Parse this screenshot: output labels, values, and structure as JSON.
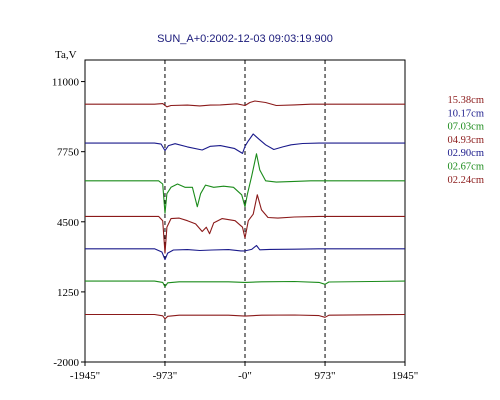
{
  "chart_data": {
    "type": "line",
    "title": "SUN_A+0:2002-12-03 09:03:19.900",
    "ylabel": "Ta,V",
    "xlim": [
      -1945,
      1945
    ],
    "ylim": [
      -2000,
      12000
    ],
    "x_tick_values": [
      -1945,
      -973,
      0,
      973,
      1945
    ],
    "x_tick_labels": [
      "-1945\"",
      "-973\"",
      "-0\"",
      "973\"",
      "1945\""
    ],
    "y_tick_values": [
      11000,
      7750,
      4500,
      1250,
      -2000
    ],
    "y_tick_labels": [
      "11000",
      "7750",
      "4500",
      "1250",
      "-2000"
    ],
    "dashed_vlines": [
      -973,
      0,
      973
    ],
    "grid": false,
    "legend_position": "right",
    "series": [
      {
        "name": "15.38cm",
        "color": "#8b1a1a",
        "baseline": 9950,
        "points": [
          [
            -1945,
            0
          ],
          [
            -1100,
            0
          ],
          [
            -1000,
            30
          ],
          [
            -950,
            -120
          ],
          [
            -900,
            -60
          ],
          [
            -700,
            -40
          ],
          [
            -550,
            -80
          ],
          [
            -420,
            -40
          ],
          [
            -300,
            -30
          ],
          [
            -100,
            20
          ],
          [
            0,
            -60
          ],
          [
            60,
            80
          ],
          [
            120,
            150
          ],
          [
            250,
            80
          ],
          [
            380,
            -60
          ],
          [
            600,
            -30
          ],
          [
            800,
            0
          ],
          [
            1945,
            0
          ]
        ]
      },
      {
        "name": "10.17cm",
        "color": "#1a1a8b",
        "baseline": 8150,
        "points": [
          [
            -1945,
            0
          ],
          [
            -1100,
            0
          ],
          [
            -1020,
            -50
          ],
          [
            -973,
            -350
          ],
          [
            -930,
            -120
          ],
          [
            -850,
            -30
          ],
          [
            -700,
            -180
          ],
          [
            -520,
            -320
          ],
          [
            -420,
            -150
          ],
          [
            -300,
            -120
          ],
          [
            -130,
            -250
          ],
          [
            -30,
            -480
          ],
          [
            0,
            -150
          ],
          [
            40,
            100
          ],
          [
            100,
            420
          ],
          [
            170,
            180
          ],
          [
            250,
            -80
          ],
          [
            350,
            -300
          ],
          [
            460,
            -180
          ],
          [
            560,
            -80
          ],
          [
            700,
            -20
          ],
          [
            900,
            0
          ],
          [
            1945,
            0
          ]
        ]
      },
      {
        "name": "07.03cm",
        "color": "#1a8b1a",
        "baseline": 6400,
        "points": [
          [
            -1945,
            0
          ],
          [
            -1050,
            0
          ],
          [
            -1000,
            -150
          ],
          [
            -973,
            -1500
          ],
          [
            -950,
            -600
          ],
          [
            -900,
            -300
          ],
          [
            -820,
            -150
          ],
          [
            -730,
            -300
          ],
          [
            -640,
            -300
          ],
          [
            -580,
            -1200
          ],
          [
            -540,
            -600
          ],
          [
            -480,
            -200
          ],
          [
            -380,
            -300
          ],
          [
            -260,
            -250
          ],
          [
            -140,
            -300
          ],
          [
            -40,
            -650
          ],
          [
            0,
            -1200
          ],
          [
            30,
            -600
          ],
          [
            80,
            200
          ],
          [
            140,
            1250
          ],
          [
            180,
            500
          ],
          [
            250,
            0
          ],
          [
            380,
            -60
          ],
          [
            600,
            -30
          ],
          [
            800,
            0
          ],
          [
            1945,
            0
          ]
        ]
      },
      {
        "name": "04.93cm",
        "color": "#8b1a1a",
        "baseline": 4750,
        "points": [
          [
            -1945,
            0
          ],
          [
            -1050,
            0
          ],
          [
            -1000,
            -200
          ],
          [
            -973,
            -1700
          ],
          [
            -950,
            -500
          ],
          [
            -900,
            -100
          ],
          [
            -800,
            -80
          ],
          [
            -700,
            -200
          ],
          [
            -600,
            -350
          ],
          [
            -520,
            -700
          ],
          [
            -470,
            -500
          ],
          [
            -430,
            -800
          ],
          [
            -380,
            -300
          ],
          [
            -280,
            -100
          ],
          [
            -120,
            -200
          ],
          [
            -30,
            -500
          ],
          [
            0,
            -1000
          ],
          [
            40,
            -200
          ],
          [
            100,
            100
          ],
          [
            150,
            1000
          ],
          [
            200,
            300
          ],
          [
            280,
            -50
          ],
          [
            400,
            -80
          ],
          [
            600,
            -30
          ],
          [
            900,
            0
          ],
          [
            1945,
            0
          ]
        ]
      },
      {
        "name": "02.90cm",
        "color": "#1a1a8b",
        "baseline": 3250,
        "points": [
          [
            -1945,
            0
          ],
          [
            -1100,
            0
          ],
          [
            -1010,
            -150
          ],
          [
            -973,
            -500
          ],
          [
            -940,
            -200
          ],
          [
            -870,
            -60
          ],
          [
            -700,
            -40
          ],
          [
            -550,
            -80
          ],
          [
            -400,
            -60
          ],
          [
            -200,
            -40
          ],
          [
            -50,
            -100
          ],
          [
            0,
            -100
          ],
          [
            80,
            -30
          ],
          [
            140,
            150
          ],
          [
            180,
            -50
          ],
          [
            300,
            -30
          ],
          [
            600,
            -20
          ],
          [
            900,
            0
          ],
          [
            1945,
            0
          ]
        ]
      },
      {
        "name": "02.67cm",
        "color": "#1a8b1a",
        "baseline": 1750,
        "points": [
          [
            -1945,
            0
          ],
          [
            -1100,
            0
          ],
          [
            -1000,
            -60
          ],
          [
            -973,
            -260
          ],
          [
            -940,
            -80
          ],
          [
            -800,
            -30
          ],
          [
            -500,
            -30
          ],
          [
            -200,
            -30
          ],
          [
            0,
            -60
          ],
          [
            200,
            -30
          ],
          [
            600,
            -20
          ],
          [
            900,
            -60
          ],
          [
            973,
            -150
          ],
          [
            1020,
            -40
          ],
          [
            1945,
            0
          ]
        ]
      },
      {
        "name": "02.24cm",
        "color": "#8b1a1a",
        "baseline": 200,
        "points": [
          [
            -1945,
            0
          ],
          [
            -1100,
            0
          ],
          [
            -1000,
            -60
          ],
          [
            -973,
            -200
          ],
          [
            -940,
            -80
          ],
          [
            -800,
            -30
          ],
          [
            -500,
            -30
          ],
          [
            -200,
            -30
          ],
          [
            0,
            -70
          ],
          [
            200,
            -30
          ],
          [
            600,
            -20
          ],
          [
            900,
            -50
          ],
          [
            973,
            -130
          ],
          [
            1020,
            -30
          ],
          [
            1945,
            0
          ]
        ]
      }
    ]
  }
}
